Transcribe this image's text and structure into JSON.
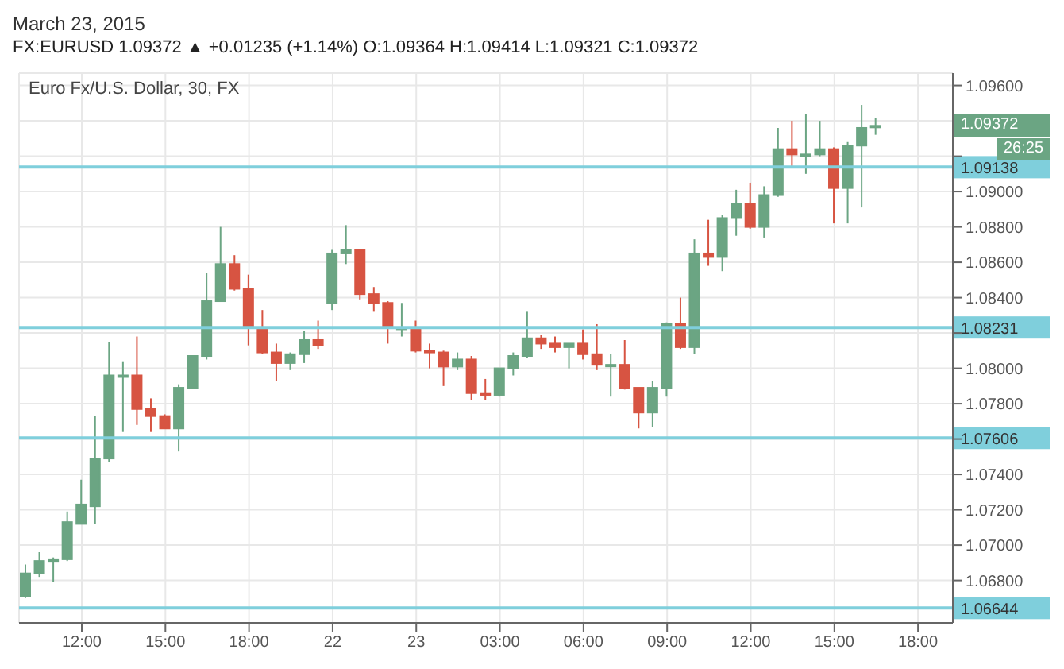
{
  "chart_data": {
    "type": "candlestick",
    "title": "Euro Fx/U.S. Dollar, 30, FX",
    "subtitle": "FX:EURUSD 1.09372 ▲ +0.01235 (+1.14%) O:1.09364 H:1.09414 L:1.09321 C:1.09372",
    "annotations": [
      "March 23, 2015",
      "1.09372",
      "26:25"
    ],
    "categories": [
      null,
      null,
      null,
      null,
      "12:00",
      null,
      null,
      null,
      null,
      null,
      "15:00",
      null,
      null,
      null,
      null,
      null,
      "18:00",
      null,
      null,
      null,
      null,
      null,
      "22",
      null,
      null,
      null,
      null,
      null,
      "23",
      null,
      null,
      null,
      null,
      null,
      "03:00",
      null,
      null,
      null,
      null,
      null,
      "06:00",
      null,
      null,
      null,
      null,
      null,
      "09:00",
      null,
      null,
      null,
      null,
      null,
      "12:00",
      null,
      null,
      null,
      null,
      null,
      "15:00",
      null,
      null,
      null,
      null,
      null,
      "18:00",
      null,
      null
    ],
    "ohlc": [
      [
        1.0671,
        1.0689,
        1.067,
        1.0684
      ],
      [
        1.0684,
        1.0696,
        1.0682,
        1.0691
      ],
      [
        1.0691,
        1.0693,
        1.0679,
        1.0692
      ],
      [
        1.0692,
        1.0719,
        1.0691,
        1.0713
      ],
      [
        1.0712,
        1.0737,
        1.0712,
        1.0723
      ],
      [
        1.0722,
        1.0773,
        1.0712,
        1.0749
      ],
      [
        1.0749,
        1.0815,
        1.0747,
        1.0796
      ],
      [
        1.0796,
        1.0804,
        1.0764,
        1.0796
      ],
      [
        1.0796,
        1.0818,
        1.0768,
        1.0777
      ],
      [
        1.0777,
        1.0783,
        1.0764,
        1.0773
      ],
      [
        1.0773,
        1.0774,
        1.0766,
        1.0766
      ],
      [
        1.0766,
        1.0791,
        1.0753,
        1.0789
      ],
      [
        1.0789,
        1.0807,
        1.0789,
        1.0807
      ],
      [
        1.0807,
        1.0854,
        1.0805,
        1.0838
      ],
      [
        1.0838,
        1.088,
        1.0838,
        1.0859
      ],
      [
        1.0859,
        1.0864,
        1.0844,
        1.0845
      ],
      [
        1.0845,
        1.0853,
        1.0813,
        1.0823
      ],
      [
        1.0823,
        1.0833,
        1.0808,
        1.0809
      ],
      [
        1.0809,
        1.0814,
        1.0793,
        1.0803
      ],
      [
        1.0803,
        1.0809,
        1.0799,
        1.0808
      ],
      [
        1.0808,
        1.0821,
        1.0803,
        1.0816
      ],
      [
        1.0816,
        1.0827,
        1.0811,
        1.0813
      ],
      [
        1.0837,
        1.0867,
        1.0833,
        1.0865
      ],
      [
        1.0865,
        1.0881,
        1.0859,
        1.0867
      ],
      [
        1.0867,
        1.0867,
        1.0839,
        1.0842
      ],
      [
        1.0842,
        1.0846,
        1.0832,
        1.0837
      ],
      [
        1.0837,
        1.0838,
        1.0814,
        1.0823
      ],
      [
        1.0823,
        1.0837,
        1.0818,
        1.0823
      ],
      [
        1.0823,
        1.0827,
        1.0809,
        1.081
      ],
      [
        1.081,
        1.0814,
        1.08,
        1.0809
      ],
      [
        1.0809,
        1.081,
        1.079,
        1.0801
      ],
      [
        1.0801,
        1.0809,
        1.0799,
        1.0805
      ],
      [
        1.0805,
        1.0807,
        1.0782,
        1.0786
      ],
      [
        1.0786,
        1.0794,
        1.0782,
        1.0785
      ],
      [
        1.0785,
        1.08,
        1.0784,
        1.08
      ],
      [
        1.08,
        1.0809,
        1.0796,
        1.0807
      ],
      [
        1.0807,
        1.0832,
        1.0806,
        1.0817
      ],
      [
        1.0817,
        1.0819,
        1.0811,
        1.0814
      ],
      [
        1.0814,
        1.0818,
        1.0809,
        1.0812
      ],
      [
        1.0812,
        1.0814,
        1.08,
        1.0814
      ],
      [
        1.0814,
        1.0822,
        1.0805,
        1.0808
      ],
      [
        1.0808,
        1.0825,
        1.0799,
        1.0802
      ],
      [
        1.0802,
        1.0808,
        1.0784,
        1.0802
      ],
      [
        1.0802,
        1.0816,
        1.0788,
        1.0789
      ],
      [
        1.0789,
        1.0789,
        1.0766,
        1.0775
      ],
      [
        1.0775,
        1.0793,
        1.0767,
        1.0789
      ],
      [
        1.0789,
        1.0826,
        1.0784,
        1.0825
      ],
      [
        1.0825,
        1.084,
        1.0811,
        1.0812
      ],
      [
        1.0812,
        1.0873,
        1.0808,
        1.0865
      ],
      [
        1.0865,
        1.0884,
        1.0858,
        1.0863
      ],
      [
        1.0863,
        1.0887,
        1.0855,
        1.0885
      ],
      [
        1.0885,
        1.0901,
        1.0875,
        1.0893
      ],
      [
        1.0893,
        1.0905,
        1.0879,
        1.088
      ],
      [
        1.088,
        1.0903,
        1.0874,
        1.0898
      ],
      [
        1.0898,
        1.0936,
        1.0897,
        1.0924
      ],
      [
        1.0924,
        1.094,
        1.0914,
        1.0921
      ],
      [
        1.0921,
        1.0944,
        1.091,
        1.0921
      ],
      [
        1.0921,
        1.094,
        1.092,
        1.0924
      ],
      [
        1.0924,
        1.0925,
        1.0882,
        1.0902
      ],
      [
        1.0902,
        1.0928,
        1.0882,
        1.0926
      ],
      [
        1.0926,
        1.0949,
        1.0891,
        1.0936
      ],
      [
        1.09364,
        1.09414,
        1.09321,
        1.09372
      ],
      null,
      null,
      null,
      null,
      null
    ],
    "colors": [
      "#6ba583",
      "#6ba583",
      "#6ba583",
      "#6ba583",
      "#6ba583",
      "#6ba583",
      "#6ba583",
      "#6ba583",
      "#d75442",
      "#d75442",
      "#d75442",
      "#6ba583",
      "#6ba583",
      "#6ba583",
      "#6ba583",
      "#d75442",
      "#d75442",
      "#d75442",
      "#d75442",
      "#6ba583",
      "#6ba583",
      "#d75442",
      "#6ba583",
      "#6ba583",
      "#d75442",
      "#d75442",
      "#d75442",
      "#6ba583",
      "#d75442",
      "#d75442",
      "#d75442",
      "#6ba583",
      "#d75442",
      "#d75442",
      "#6ba583",
      "#6ba583",
      "#6ba583",
      "#d75442",
      "#d75442",
      "#6ba583",
      "#d75442",
      "#d75442",
      "#6ba583",
      "#d75442",
      "#d75442",
      "#6ba583",
      "#6ba583",
      "#d75442",
      "#6ba583",
      "#d75442",
      "#6ba583",
      "#6ba583",
      "#d75442",
      "#6ba583",
      "#6ba583",
      "#d75442",
      "#6ba583",
      "#6ba583",
      "#d75442",
      "#6ba583",
      "#6ba583",
      "#6ba583",
      null,
      null,
      null,
      null,
      null
    ],
    "ylim": [
      1.0656,
      1.0967
    ],
    "yticks": [
      {
        "value": 1.068,
        "label": "1.06800"
      },
      {
        "value": 1.07,
        "label": "1.07000"
      },
      {
        "value": 1.072,
        "label": "1.07200"
      },
      {
        "value": 1.074,
        "label": "1.07400"
      },
      {
        "value": 1.076,
        "label": null
      },
      {
        "value": 1.078,
        "label": "1.07800"
      },
      {
        "value": 1.08,
        "label": "1.08000"
      },
      {
        "value": 1.082,
        "label": null
      },
      {
        "value": 1.084,
        "label": "1.08400"
      },
      {
        "value": 1.086,
        "label": "1.08600"
      },
      {
        "value": 1.088,
        "label": "1.08800"
      },
      {
        "value": 1.09,
        "label": "1.09000"
      },
      {
        "value": 1.092,
        "label": null
      },
      {
        "value": 1.094,
        "label": null
      },
      {
        "value": 1.096,
        "label": "1.09600"
      }
    ],
    "ref_lines": [
      {
        "axis": "y",
        "value": 1.09138,
        "label": "1.09138",
        "color": "#7fcfdc"
      },
      {
        "axis": "y",
        "value": 1.08231,
        "label": "1.08231",
        "color": "#7fcfdc"
      },
      {
        "axis": "y",
        "value": 1.07606,
        "label": "1.07606",
        "color": "#7fcfdc"
      },
      {
        "axis": "y",
        "value": 1.06644,
        "label": "1.06644",
        "color": "#7fcfdc"
      }
    ],
    "grid": true
  }
}
